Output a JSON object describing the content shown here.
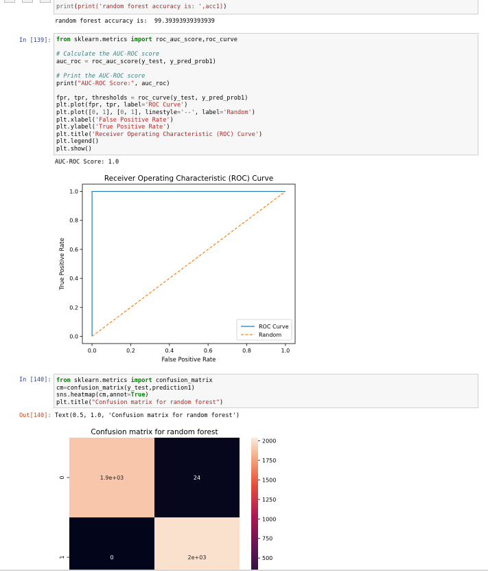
{
  "cell_prev": {
    "code_line": "print('random forest accuracy is: ',acc1)",
    "output": "random forest accuracy is:  99.39393939393939"
  },
  "cell_139": {
    "prompt": "In [139]:",
    "lines": [
      "from sklearn.metrics import roc_auc_score,roc_curve",
      "",
      "# Calculate the AUC-ROC score",
      "auc_roc = roc_auc_score(y_test, y_pred_prob1)",
      "",
      "# Print the AUC-ROC score",
      "print(\"AUC-ROC Score:\", auc_roc)",
      "",
      "fpr, tpr, thresholds = roc_curve(y_test, y_pred_prob1)",
      "plt.plot(fpr, tpr, label='ROC Curve')",
      "plt.plot([0, 1], [0, 1], linestyle='--', label='Random')",
      "plt.xlabel('False Positive Rate')",
      "plt.ylabel('True Positive Rate')",
      "plt.title('Receiver Operating Characteristic (ROC) Curve')",
      "plt.legend()",
      "plt.show()"
    ],
    "output": "AUC-ROC Score: 1.0"
  },
  "cell_140": {
    "prompt": "In [140]:",
    "lines": [
      "from sklearn.metrics import confusion_matrix",
      "cm=confusion_matrix(y_test,prediction1)",
      "sns.heatmap(cm,annot=True)",
      "plt.title(\"Confusion matrix for random forest\")"
    ],
    "out_prompt": "Out[140]:",
    "output": "Text(0.5, 1.0, 'Confusion matrix for random forest')"
  },
  "chart_data": [
    {
      "type": "line",
      "title": "Receiver Operating Characteristic (ROC) Curve",
      "xlabel": "False Positive Rate",
      "ylabel": "True Positive Rate",
      "xlim": [
        -0.05,
        1.05
      ],
      "ylim": [
        -0.05,
        1.05
      ],
      "xticks": [
        "0.0",
        "0.2",
        "0.4",
        "0.6",
        "0.8",
        "1.0"
      ],
      "yticks": [
        "0.0",
        "0.2",
        "0.4",
        "0.6",
        "0.8",
        "1.0"
      ],
      "grid": false,
      "legend_position": "lower-right",
      "series": [
        {
          "name": "ROC Curve",
          "x": [
            0,
            0,
            1
          ],
          "y": [
            0,
            1,
            1
          ],
          "color": "#1f77b4",
          "style": "solid"
        },
        {
          "name": "Random",
          "x": [
            0,
            1
          ],
          "y": [
            0,
            1
          ],
          "color": "#ff7f0e",
          "style": "dashed"
        }
      ]
    },
    {
      "type": "heatmap",
      "title": "Confusion matrix for random forest",
      "row_labels": [
        "0",
        "1"
      ],
      "col_labels": [],
      "values": [
        [
          1900,
          24
        ],
        [
          0,
          2000
        ]
      ],
      "annotations": [
        [
          "1.9e+03",
          "24"
        ],
        [
          "0",
          "2e+03"
        ]
      ],
      "colorbar_ticks": [
        "2000",
        "1750",
        "1500",
        "1250",
        "1000",
        "750",
        "500"
      ],
      "colorbar_range": [
        0,
        2040
      ],
      "colormap": "rocket"
    }
  ]
}
